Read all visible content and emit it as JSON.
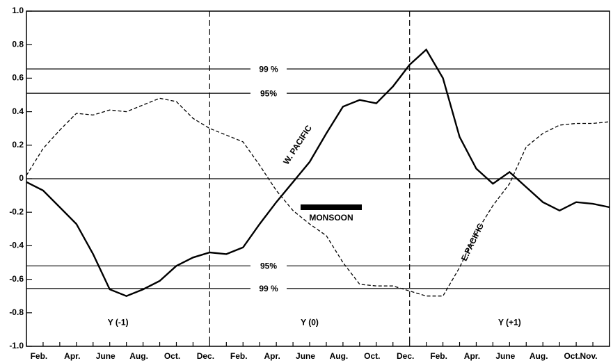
{
  "chart_data": {
    "type": "line",
    "categories": [
      null,
      "Feb.",
      null,
      "Apr.",
      null,
      "June",
      null,
      "Aug.",
      null,
      "Oct.",
      null,
      "Dec.",
      null,
      "Feb.",
      null,
      "Apr.",
      null,
      "June",
      null,
      "Aug.",
      null,
      "Oct.",
      null,
      "Dec.",
      null,
      "Feb.",
      null,
      "Apr.",
      null,
      "June",
      null,
      "Aug.",
      null,
      "Oct.",
      "Nov.",
      null
    ],
    "series": [
      {
        "name": "W. PACIFIC",
        "color": "#000000",
        "dash": false,
        "values": [
          -0.02,
          -0.07,
          -0.17,
          -0.27,
          -0.45,
          -0.66,
          -0.7,
          -0.66,
          -0.61,
          -0.52,
          -0.47,
          -0.44,
          -0.45,
          -0.41,
          -0.27,
          -0.14,
          -0.02,
          0.1,
          0.27,
          0.43,
          0.47,
          0.45,
          0.55,
          0.68,
          0.77,
          0.6,
          0.25,
          0.06,
          -0.03,
          0.04,
          -0.05,
          -0.14,
          -0.19,
          -0.14,
          -0.15,
          -0.17
        ]
      },
      {
        "name": "E.PACIFIC",
        "color": "#000000",
        "dash": true,
        "values": [
          0.02,
          0.18,
          0.29,
          0.39,
          0.38,
          0.41,
          0.4,
          0.44,
          0.48,
          0.46,
          0.36,
          0.3,
          0.26,
          0.22,
          0.08,
          -0.07,
          -0.19,
          -0.27,
          -0.34,
          -0.5,
          -0.63,
          -0.64,
          -0.64,
          -0.67,
          -0.7,
          -0.7,
          -0.53,
          -0.32,
          -0.16,
          -0.03,
          0.19,
          0.27,
          0.32,
          0.33,
          0.33,
          0.34
        ]
      }
    ],
    "ylim": [
      -1,
      1
    ],
    "yticks": [
      {
        "value": 1,
        "label": "1.0"
      },
      0.8,
      0.6,
      0.4,
      0.2,
      0,
      -0.2,
      -0.4,
      -0.6,
      -0.8,
      {
        "value": -1,
        "label": "-1.0"
      }
    ],
    "reference_lines": [
      {
        "value": 0.655,
        "label": "99 %"
      },
      {
        "value": 0.51,
        "label": "95%"
      },
      {
        "value": -0.52,
        "label": "95%"
      },
      {
        "value": -0.655,
        "label": "99 %"
      }
    ],
    "year_dividers": [
      11,
      23
    ],
    "periods": [
      "Y (-1)",
      "Y (0)",
      "Y (+1)"
    ],
    "annotation": "MONSOON"
  }
}
